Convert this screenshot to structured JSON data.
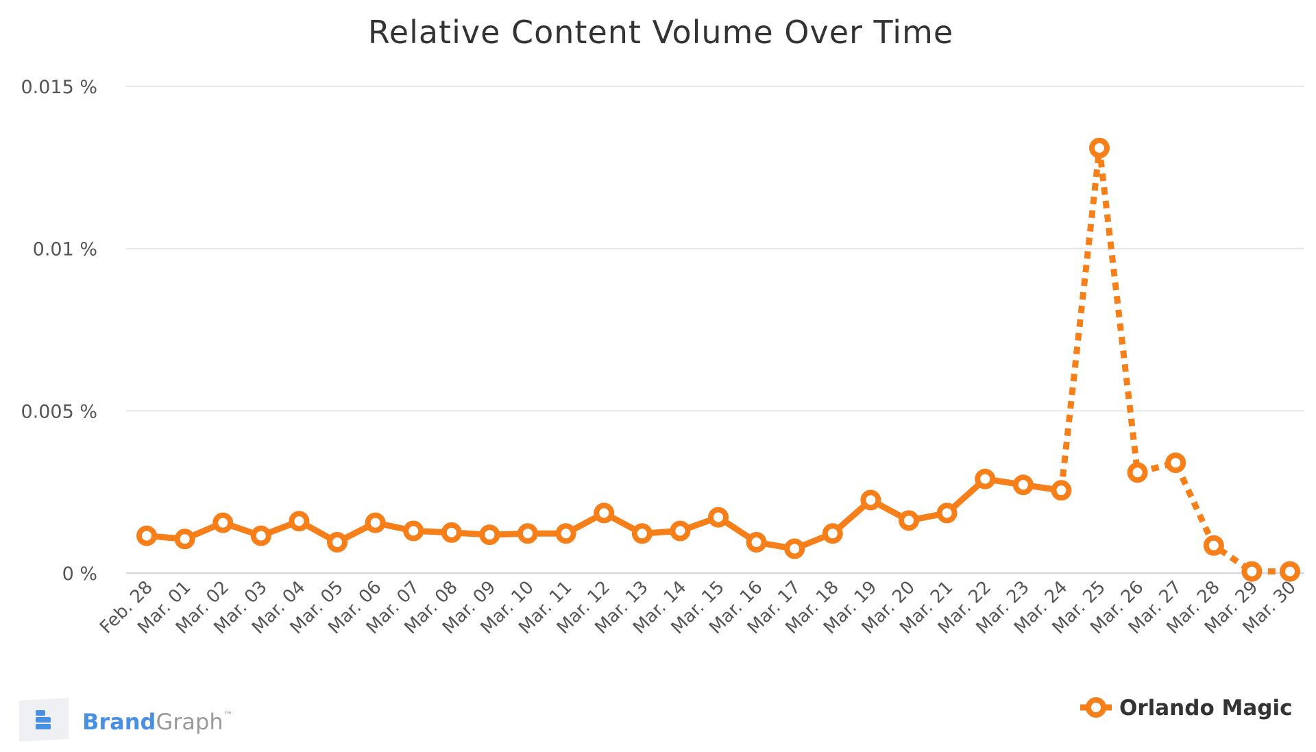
{
  "chart_data": {
    "type": "line",
    "title": "Relative Content Volume Over Time",
    "xlabel": "",
    "ylabel": "",
    "ylim": [
      0,
      0.015
    ],
    "yticks": [
      {
        "value": 0,
        "label": "0 %"
      },
      {
        "value": 0.005,
        "label": "0.005 %"
      },
      {
        "value": 0.01,
        "label": "0.01 %"
      },
      {
        "value": 0.015,
        "label": "0.015 %"
      }
    ],
    "grid": true,
    "legend_position": "bottom-right",
    "categories": [
      "Feb. 28",
      "Mar. 01",
      "Mar. 02",
      "Mar. 03",
      "Mar. 04",
      "Mar. 05",
      "Mar. 06",
      "Mar. 07",
      "Mar. 08",
      "Mar. 09",
      "Mar. 10",
      "Mar. 11",
      "Mar. 12",
      "Mar. 13",
      "Mar. 14",
      "Mar. 15",
      "Mar. 16",
      "Mar. 17",
      "Mar. 18",
      "Mar. 19",
      "Mar. 20",
      "Mar. 21",
      "Mar. 22",
      "Mar. 23",
      "Mar. 24",
      "Mar. 25",
      "Mar. 26",
      "Mar. 27",
      "Mar. 28",
      "Mar. 29",
      "Mar. 30"
    ],
    "series": [
      {
        "name": "Orlando Magic",
        "color": "#f77f1a",
        "values": [
          0.00115,
          0.00105,
          0.00155,
          0.00115,
          0.0016,
          0.00095,
          0.00155,
          0.0013,
          0.00125,
          0.00118,
          0.00122,
          0.00122,
          0.00185,
          0.00122,
          0.0013,
          0.00172,
          0.00095,
          0.00075,
          0.00122,
          0.00225,
          0.00162,
          0.00185,
          0.0029,
          0.00272,
          0.00255,
          0.0131,
          0.0031,
          0.0034,
          0.00085,
          5e-05,
          5e-05
        ],
        "solid_until_index": 24,
        "dashed_from_index": 24
      }
    ]
  },
  "branding": {
    "brand_part1": "Brand",
    "brand_part2": "Graph",
    "trademark": "™",
    "brand_color": "#4a90e2",
    "graph_color": "#9a9a9a"
  }
}
